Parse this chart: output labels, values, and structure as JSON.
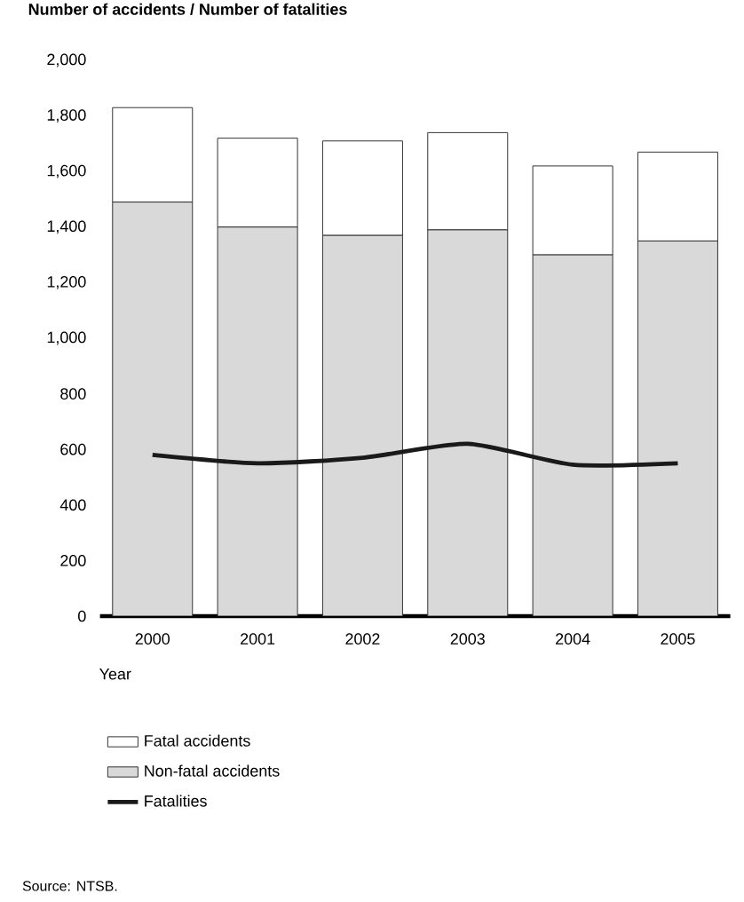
{
  "chart_data": {
    "type": "bar",
    "title": "Number of accidents / Number of fatalities",
    "xlabel": "Year",
    "categories": [
      "2000",
      "2001",
      "2002",
      "2003",
      "2004",
      "2005"
    ],
    "stacked": true,
    "series": [
      {
        "name": "Non-fatal accidents",
        "color": "#d9d9d9",
        "values": [
          1490,
          1400,
          1370,
          1390,
          1300,
          1350
        ]
      },
      {
        "name": "Fatal accidents",
        "color": "#ffffff",
        "values": [
          340,
          320,
          340,
          350,
          320,
          320
        ]
      },
      {
        "name": "Fatalities",
        "type": "line",
        "color": "#1a1a1a",
        "values": [
          580,
          550,
          570,
          620,
          545,
          550
        ]
      }
    ],
    "ylim": [
      0,
      2000
    ],
    "yticks": [
      {
        "value": 0,
        "label": "0"
      },
      {
        "value": 200,
        "label": "200"
      },
      {
        "value": 400,
        "label": "400"
      },
      {
        "value": 600,
        "label": "600"
      },
      {
        "value": 800,
        "label": "800"
      },
      {
        "value": 1000,
        "label": "1,000"
      },
      {
        "value": 1200,
        "label": "1,200"
      },
      {
        "value": 1400,
        "label": "1,400"
      },
      {
        "value": 1600,
        "label": "1,600"
      },
      {
        "value": 1800,
        "label": "1,800"
      },
      {
        "value": 2000,
        "label": "2,000"
      }
    ],
    "grid": false,
    "legend": "bottom",
    "annotations": [
      "Source: NTSB."
    ]
  }
}
